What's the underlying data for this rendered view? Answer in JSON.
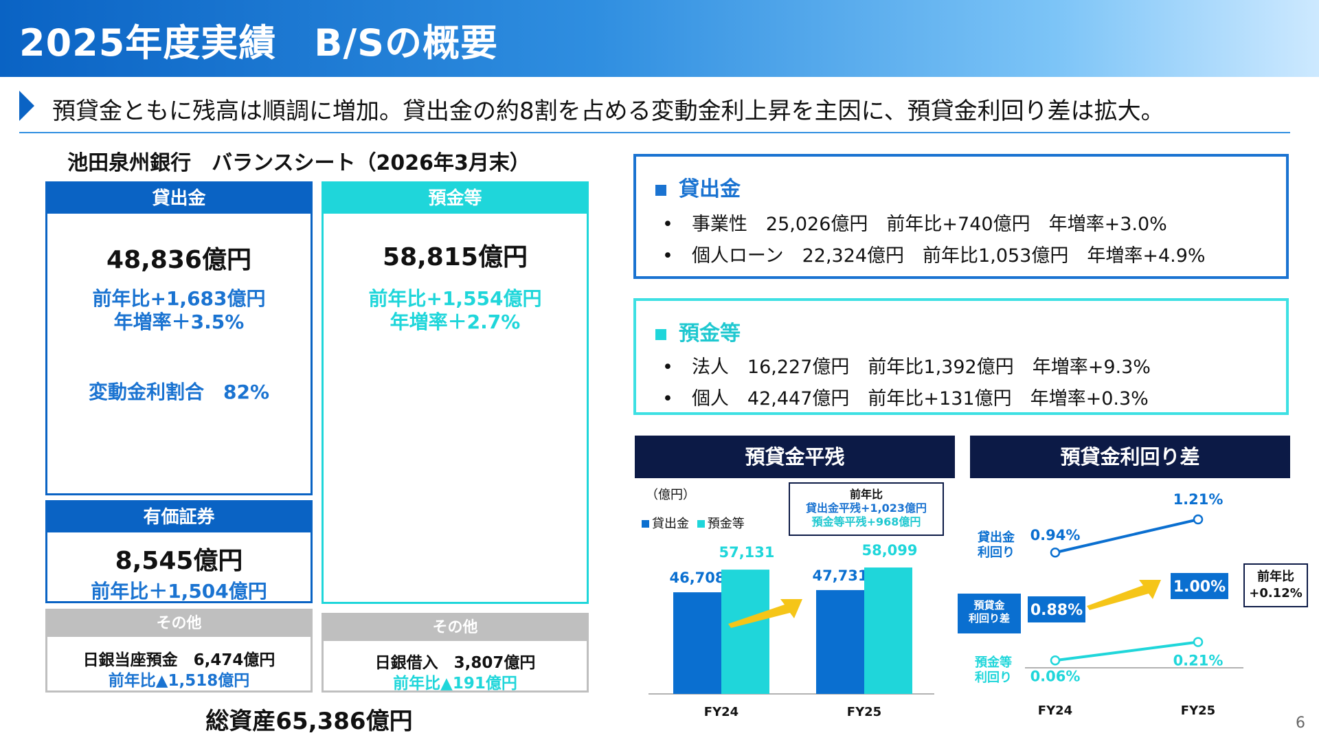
{
  "header": {
    "title": "2025年度実績　B/Sの概要"
  },
  "lead": {
    "text": "預貸金ともに残高は順調に増加。貸出金の約8割を占める変動金利上昇を主因に、預貸金利回り差は拡大。"
  },
  "balance_sheet": {
    "title": "池田泉州銀行　バランスシート（2026年3月末）",
    "loans": {
      "label": "貸出金",
      "amount": "48,836億円",
      "yoy": "前年比+1,683億円",
      "growth": "年増率＋3.5%",
      "variable_ratio": "変動金利割合　82%"
    },
    "deposits": {
      "label": "預金等",
      "amount": "58,815億円",
      "yoy": "前年比+1,554億円",
      "growth": "年増率＋2.7%"
    },
    "securities": {
      "label": "有価証券",
      "amount": "8,545億円",
      "yoy": "前年比＋1,504億円"
    },
    "other_assets": {
      "label": "その他",
      "line1": "日銀当座預金　6,474億円",
      "line2": "前年比▲1,518億円"
    },
    "other_liabilities": {
      "label": "その他",
      "line1": "日銀借入　3,807億円",
      "line2": "前年比▲191億円"
    },
    "total_assets": "総資産65,386億円"
  },
  "loans_detail": {
    "title": "貸出金",
    "items": [
      "事業性　25,026億円　前年比+740億円　年増率+3.0%",
      "個人ローン　22,324億円　前年比1,053億円　年増率+4.9%"
    ]
  },
  "deposits_detail": {
    "title": "預金等",
    "items": [
      "法人　16,227億円　前年比1,392億円　年増率+9.3%",
      "個人　42,447億円　前年比+131億円　年増率+0.3%"
    ]
  },
  "bullet_char": "•",
  "colors": {
    "loan": "#0a6fd0",
    "deposit": "#1fd6da",
    "navy": "#0c1a46",
    "arrow": "#f5c518"
  },
  "charts": {
    "balance": {
      "title": "預貸金平残",
      "unit": "（億円）",
      "legend": [
        "貸出金",
        "預金等"
      ],
      "callout": {
        "title": "前年比",
        "line1": "貸出金平残+1,023億円",
        "line2": "預金等平残+968億円"
      }
    },
    "spread": {
      "title": "預貸金利回り差",
      "loan_label": "貸出金\n利回り",
      "spread_label": "預貸金\n利回り差",
      "deposit_label": "預金等\n利回り",
      "callout": {
        "title": "前年比",
        "value": "+0.12%"
      }
    }
  },
  "chart_data": [
    {
      "type": "bar",
      "title": "預貸金平残",
      "categories": [
        "FY24",
        "FY25"
      ],
      "series": [
        {
          "name": "貸出金",
          "values": [
            46708,
            47731
          ],
          "labels": [
            "46,708",
            "47,731"
          ]
        },
        {
          "name": "預金等",
          "values": [
            57131,
            58099
          ],
          "labels": [
            "57,131",
            "58,099"
          ]
        }
      ],
      "ylim": [
        0,
        60000
      ]
    },
    {
      "type": "line",
      "title": "預貸金利回り差",
      "categories": [
        "FY24",
        "FY25"
      ],
      "series": [
        {
          "name": "貸出金利回り",
          "values": [
            0.94,
            1.21
          ],
          "labels": [
            "0.94%",
            "1.21%"
          ]
        },
        {
          "name": "預金等利回り",
          "values": [
            0.06,
            0.21
          ],
          "labels": [
            "0.06%",
            "0.21%"
          ]
        }
      ],
      "spread": {
        "values": [
          0.88,
          1.0
        ],
        "labels": [
          "0.88%",
          "1.00%"
        ]
      },
      "ylim": [
        0,
        1.3
      ]
    }
  ],
  "page_number": "6"
}
